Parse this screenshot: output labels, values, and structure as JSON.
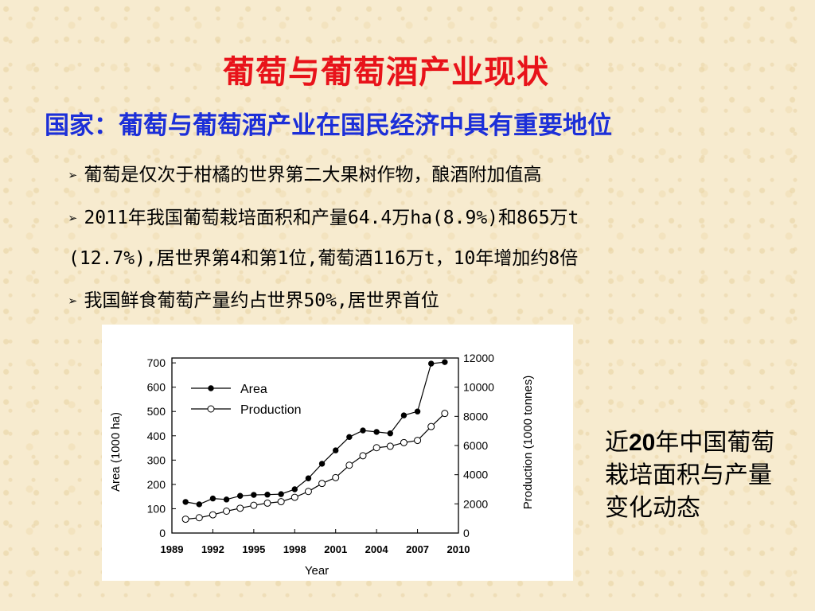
{
  "slide": {
    "title": "葡萄与葡萄酒产业现状",
    "subtitle": "国家：葡萄与葡萄酒产业在国民经济中具有重要地位",
    "bullet_mark": "➢",
    "bullets": [
      "葡萄是仅次于柑橘的世界第二大果树作物，酿酒附加值高",
      "2011年我国葡萄栽培面积和产量64.4万ha(8.9%)和865万t",
      "(12.7%),居世界第4和第1位,葡萄酒116万t，10年增加约8倍",
      "我国鲜食葡萄产量约占世界50%,居世界首位"
    ],
    "caption_prefix": "近",
    "caption_number": "20",
    "caption_rest": "年中国葡萄栽培面积与产量变化动态"
  },
  "chart_data": {
    "type": "line",
    "xlabel": "Year",
    "y_left_label": "Area (1000 ha)",
    "y_right_label": "Production (1000 tonnes)",
    "x_ticks": [
      1989,
      1992,
      1995,
      1998,
      2001,
      2004,
      2007,
      2010
    ],
    "xlim": [
      1989,
      2010
    ],
    "y_left_ticks": [
      0,
      100,
      200,
      300,
      400,
      500,
      600,
      700
    ],
    "y_left_lim": [
      0,
      720
    ],
    "y_right_ticks": [
      0,
      2000,
      4000,
      6000,
      8000,
      10000,
      12000
    ],
    "y_right_lim": [
      0,
      12000
    ],
    "legend_position": "top-left",
    "grid": false,
    "series": [
      {
        "name": "Area",
        "axis": "left",
        "marker": "filled",
        "x": [
          1990,
          1991,
          1992,
          1993,
          1994,
          1995,
          1996,
          1997,
          1998,
          1999,
          2000,
          2001,
          2002,
          2003,
          2004,
          2005,
          2006,
          2007,
          2008,
          2009
        ],
        "values": [
          128,
          118,
          142,
          138,
          153,
          157,
          158,
          160,
          180,
          225,
          285,
          340,
          395,
          422,
          416,
          410,
          484,
          500,
          697,
          703
        ]
      },
      {
        "name": "Production",
        "axis": "right",
        "marker": "open",
        "x": [
          1990,
          1991,
          1992,
          1993,
          1994,
          1995,
          1996,
          1997,
          1998,
          1999,
          2000,
          2001,
          2002,
          2003,
          2004,
          2005,
          2006,
          2007,
          2008,
          2009
        ],
        "values": [
          950,
          1050,
          1250,
          1500,
          1700,
          1900,
          2050,
          2150,
          2450,
          2850,
          3400,
          3800,
          4650,
          5300,
          5850,
          5950,
          6200,
          6350,
          7300,
          8200
        ]
      }
    ]
  }
}
